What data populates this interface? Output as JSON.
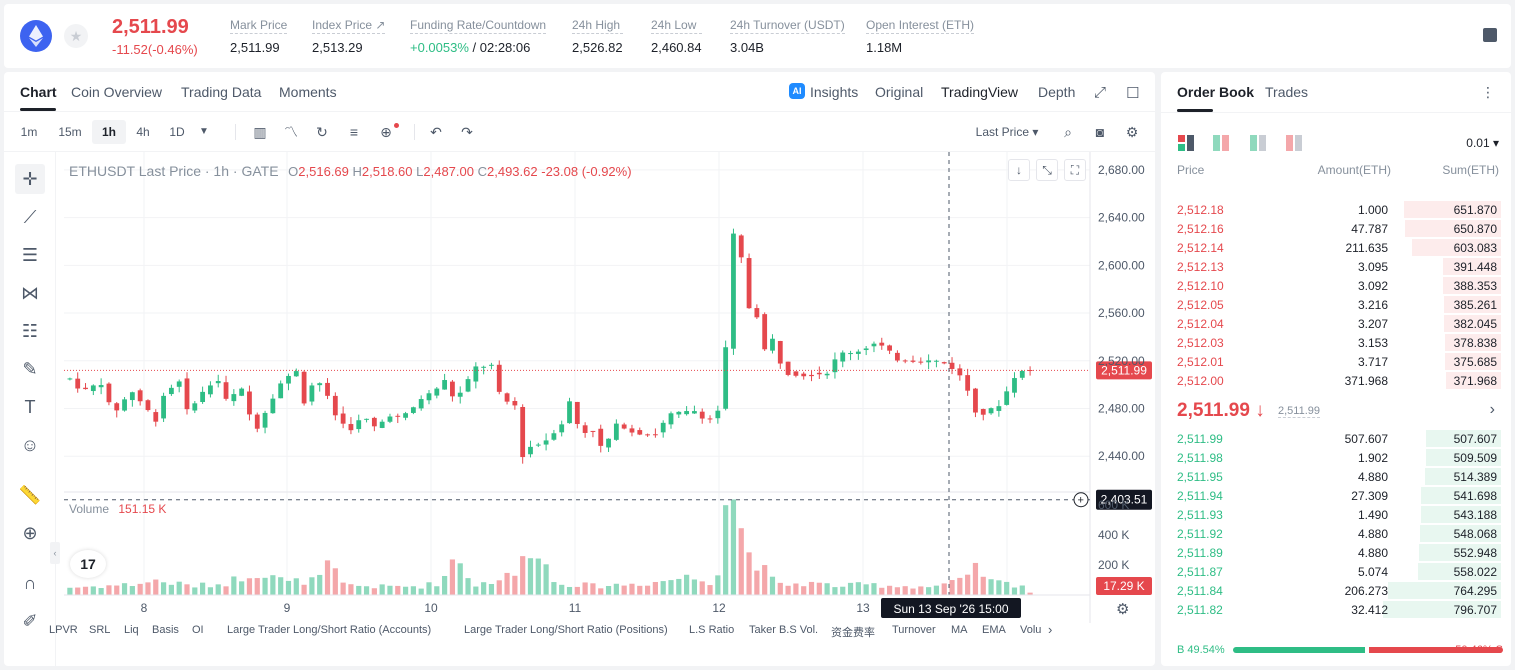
{
  "ticker": {
    "last_price": "2,511.99",
    "change": "-11.52(-0.46%)",
    "stats": [
      {
        "label": "Mark Price",
        "value": "2,511.99"
      },
      {
        "label": "Index Price ↗",
        "value": "2,513.29"
      },
      {
        "label": "Funding Rate/Countdown",
        "value_green": "+0.0053%",
        "value_rest": " / 02:28:06"
      },
      {
        "label": "24h High",
        "value": "2,526.82"
      },
      {
        "label": "24h Low",
        "value": "2,460.84"
      },
      {
        "label": "24h Turnover (USDT)",
        "value": "3.04B"
      },
      {
        "label": "Open Interest (ETH)",
        "value": "1.18M"
      }
    ]
  },
  "chart_tabs": [
    "Chart",
    "Coin Overview",
    "Trading Data",
    "Moments"
  ],
  "chart_views": {
    "ai_badge": "AI",
    "insights": "Insights",
    "original": "Original",
    "tradingview": "TradingView",
    "depth": "Depth"
  },
  "timeframes": [
    "1m",
    "15m",
    "1h",
    "4h",
    "1D"
  ],
  "price_type": "Last Price",
  "legend": {
    "symbol": "ETHUSDT Last Price · 1h · GATE",
    "o_label": "O",
    "o": "2,516.69",
    "h_label": "H",
    "h": "2,518.60",
    "l_label": "L",
    "l": "2,487.00",
    "c_label": "C",
    "c": "2,493.62",
    "chg": "-23.08 (-0.92%)"
  },
  "volume_legend": {
    "label": "Volume",
    "value": "151.15 K"
  },
  "tv_logo": "17",
  "chart_data": {
    "type": "candlestick",
    "title": "ETHUSDT Last Price · 1h · GATE",
    "price_ticks": [
      "2,680.00",
      "2,640.00",
      "2,600.00",
      "2,560.00",
      "2,520.00",
      "2,480.00",
      "2,440.00"
    ],
    "price_tick_values": [
      2680,
      2640,
      2600,
      2560,
      2520,
      2480,
      2440
    ],
    "ylim": [
      2410,
      2695
    ],
    "volume_ticks": [
      "600 K",
      "400 K",
      "200 K"
    ],
    "volume_tick_values": [
      600,
      400,
      200
    ],
    "volume_ylim": [
      0,
      620
    ],
    "x_ticks": [
      "8",
      "9",
      "10",
      "11",
      "12",
      "13"
    ],
    "current_price_label": "2,511.99",
    "current_price": 2511.99,
    "crosshair_price_label": "2,403.51",
    "crosshair_price": 2403.51,
    "crosshair_time": "Sun 13 Sep '26   15:00",
    "last_volume_label": "17.29 K",
    "grid": true,
    "segments": [
      [
        0,
        2505
      ],
      [
        8,
        2494
      ],
      [
        20,
        2502
      ],
      [
        28,
        2475
      ],
      [
        40,
        2495
      ],
      [
        56,
        2470
      ],
      [
        60,
        2490
      ],
      [
        72,
        2505
      ],
      [
        76,
        2478
      ],
      [
        88,
        2496
      ],
      [
        96,
        2505
      ],
      [
        100,
        2486
      ],
      [
        112,
        2496
      ],
      [
        120,
        2460
      ],
      [
        136,
        2500
      ],
      [
        148,
        2513
      ],
      [
        152,
        2485
      ],
      [
        160,
        2507
      ],
      [
        168,
        2488
      ],
      [
        174,
        2470
      ],
      [
        184,
        2462
      ],
      [
        190,
        2474
      ],
      [
        200,
        2462
      ],
      [
        206,
        2476
      ],
      [
        212,
        2472
      ],
      [
        220,
        2476
      ],
      [
        228,
        2488
      ],
      [
        236,
        2494
      ],
      [
        245,
        2505
      ],
      [
        250,
        2485
      ],
      [
        264,
        2515
      ],
      [
        274,
        2516
      ],
      [
        280,
        2488
      ],
      [
        290,
        2482
      ],
      [
        294,
        2440
      ],
      [
        302,
        2452
      ],
      [
        306,
        2449
      ],
      [
        320,
        2468
      ],
      [
        324,
        2488
      ],
      [
        332,
        2459
      ],
      [
        340,
        2462
      ],
      [
        346,
        2445
      ],
      [
        356,
        2468
      ],
      [
        366,
        2460
      ],
      [
        380,
        2458
      ],
      [
        390,
        2475
      ],
      [
        406,
        2478
      ],
      [
        412,
        2472
      ],
      [
        420,
        2470
      ],
      [
        425,
        2509
      ],
      [
        432,
        2640
      ],
      [
        434,
        2628
      ],
      [
        440,
        2570
      ],
      [
        444,
        2554
      ],
      [
        448,
        2560
      ],
      [
        452,
        2525
      ],
      [
        456,
        2540
      ],
      [
        464,
        2510
      ],
      [
        478,
        2508
      ],
      [
        492,
        2510
      ],
      [
        500,
        2526
      ],
      [
        512,
        2528
      ],
      [
        524,
        2535
      ],
      [
        530,
        2530
      ],
      [
        538,
        2521
      ],
      [
        552,
        2520
      ],
      [
        562,
        2520
      ],
      [
        568,
        2518
      ],
      [
        576,
        2512
      ],
      [
        582,
        2500
      ],
      [
        590,
        2473
      ],
      [
        600,
        2480
      ],
      [
        606,
        2485
      ],
      [
        612,
        2505
      ],
      [
        620,
        2512
      ],
      [
        624,
        2511.99
      ]
    ],
    "volume_segments": [
      [
        0,
        50
      ],
      [
        40,
        70
      ],
      [
        56,
        95
      ],
      [
        80,
        60
      ],
      [
        100,
        75
      ],
      [
        120,
        155
      ],
      [
        132,
        140
      ],
      [
        140,
        80
      ],
      [
        150,
        95
      ],
      [
        160,
        95
      ],
      [
        170,
        210
      ],
      [
        176,
        70
      ],
      [
        200,
        55
      ],
      [
        230,
        60
      ],
      [
        242,
        90
      ],
      [
        250,
        270
      ],
      [
        256,
        200
      ],
      [
        262,
        60
      ],
      [
        290,
        140
      ],
      [
        300,
        340
      ],
      [
        306,
        330
      ],
      [
        312,
        90
      ],
      [
        340,
        60
      ],
      [
        360,
        70
      ],
      [
        380,
        85
      ],
      [
        400,
        120
      ],
      [
        418,
        90
      ],
      [
        422,
        200
      ],
      [
        426,
        680
      ],
      [
        432,
        670
      ],
      [
        438,
        330
      ],
      [
        444,
        265
      ],
      [
        448,
        210
      ],
      [
        452,
        150
      ],
      [
        460,
        65
      ],
      [
        480,
        80
      ],
      [
        500,
        60
      ],
      [
        520,
        70
      ],
      [
        540,
        60
      ],
      [
        560,
        55
      ],
      [
        580,
        95
      ],
      [
        584,
        125
      ],
      [
        590,
        180
      ],
      [
        598,
        90
      ],
      [
        610,
        75
      ],
      [
        620,
        65
      ],
      [
        624,
        17.29
      ]
    ]
  },
  "bottom_indicators": [
    "LPVR",
    "SRL",
    "Liq",
    "Basis",
    "OI",
    "Large Trader Long/Short Ratio (Accounts)",
    "Large Trader Long/Short Ratio (Positions)",
    "L.S Ratio",
    "Taker B.S Vol.",
    "资金费率",
    "Turnover",
    "MA",
    "EMA",
    "Volu"
  ],
  "order_book": {
    "tabs": [
      "Order Book",
      "Trades"
    ],
    "precision": "0.01",
    "headers": {
      "price": "Price",
      "amount": "Amount(ETH)",
      "sum": "Sum(ETH)"
    },
    "asks": [
      {
        "price": "2,512.18",
        "amount": "1.000",
        "sum": "651.870",
        "depth": 651.87
      },
      {
        "price": "2,512.16",
        "amount": "47.787",
        "sum": "650.870",
        "depth": 650.87
      },
      {
        "price": "2,512.14",
        "amount": "211.635",
        "sum": "603.083",
        "depth": 603.083
      },
      {
        "price": "2,512.13",
        "amount": "3.095",
        "sum": "391.448",
        "depth": 391.448
      },
      {
        "price": "2,512.10",
        "amount": "3.092",
        "sum": "388.353",
        "depth": 388.353
      },
      {
        "price": "2,512.05",
        "amount": "3.216",
        "sum": "385.261",
        "depth": 385.261
      },
      {
        "price": "2,512.04",
        "amount": "3.207",
        "sum": "382.045",
        "depth": 382.045
      },
      {
        "price": "2,512.03",
        "amount": "3.153",
        "sum": "378.838",
        "depth": 378.838
      },
      {
        "price": "2,512.01",
        "amount": "3.717",
        "sum": "375.685",
        "depth": 375.685
      },
      {
        "price": "2,512.00",
        "amount": "371.968",
        "sum": "371.968",
        "depth": 371.968
      }
    ],
    "mid_price": "2,511.99 ↓",
    "mark_price": "2,511.99",
    "bids": [
      {
        "price": "2,511.99",
        "amount": "507.607",
        "sum": "507.607",
        "depth": 507.607
      },
      {
        "price": "2,511.98",
        "amount": "1.902",
        "sum": "509.509",
        "depth": 509.509
      },
      {
        "price": "2,511.95",
        "amount": "4.880",
        "sum": "514.389",
        "depth": 514.389
      },
      {
        "price": "2,511.94",
        "amount": "27.309",
        "sum": "541.698",
        "depth": 541.698
      },
      {
        "price": "2,511.93",
        "amount": "1.490",
        "sum": "543.188",
        "depth": 543.188
      },
      {
        "price": "2,511.92",
        "amount": "4.880",
        "sum": "548.068",
        "depth": 548.068
      },
      {
        "price": "2,511.89",
        "amount": "4.880",
        "sum": "552.948",
        "depth": 552.948
      },
      {
        "price": "2,511.87",
        "amount": "5.074",
        "sum": "558.022",
        "depth": 558.022
      },
      {
        "price": "2,511.84",
        "amount": "206.273",
        "sum": "764.295",
        "depth": 764.295
      },
      {
        "price": "2,511.82",
        "amount": "32.412",
        "sum": "796.707",
        "depth": 796.707
      }
    ],
    "buy_ratio": "B 49.54%",
    "sell_ratio": "50.46% S",
    "buy_fraction": 0.4954
  },
  "colors": {
    "up": "#2ebd85",
    "down": "#e5484d",
    "accent": "#3d63f0"
  }
}
